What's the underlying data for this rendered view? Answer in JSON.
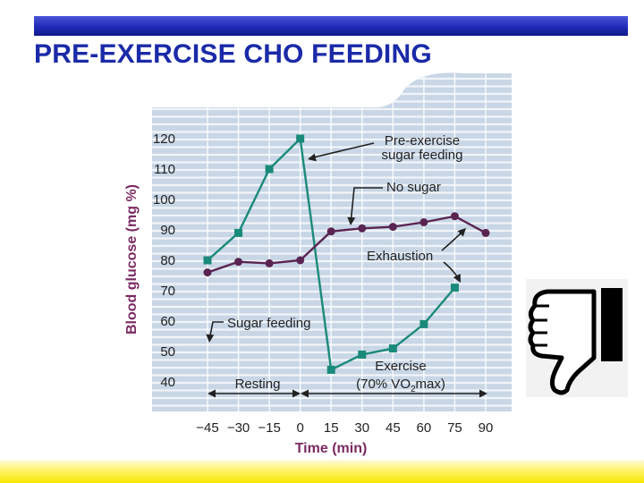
{
  "slide": {
    "title": "PRE-EXERCISE CHO FEEDING"
  },
  "chart_data": {
    "type": "line",
    "title": "",
    "xlabel": "Time (min)",
    "ylabel": "Blood glucose (mg %)",
    "x": [
      -45,
      -30,
      -15,
      0,
      15,
      30,
      45,
      60,
      75,
      90
    ],
    "x_tick_labels": [
      "−45",
      "−30",
      "−15",
      "0",
      "15",
      "30",
      "45",
      "60",
      "75",
      "90"
    ],
    "y_ticks": [
      40,
      50,
      60,
      70,
      80,
      90,
      100,
      110,
      120
    ],
    "xlim": [
      -45,
      90
    ],
    "ylim": [
      40,
      120
    ],
    "grid": true,
    "series": [
      {
        "key": "sugar",
        "color": "#1a8a7a",
        "marker": "square",
        "x": [
          -45,
          -30,
          -15,
          0,
          15,
          30,
          45,
          60,
          75
        ],
        "values": [
          80,
          89,
          110,
          120,
          44,
          49,
          51,
          59,
          71
        ]
      },
      {
        "key": "nosugar",
        "color": "#5a2452",
        "marker": "circle",
        "x": [
          -45,
          -30,
          -15,
          0,
          15,
          30,
          45,
          60,
          75,
          90
        ],
        "values": [
          76,
          79.5,
          79,
          80,
          89.5,
          90.5,
          91,
          92.5,
          94.5,
          89
        ]
      }
    ],
    "annotations": {
      "pre_exercise_line1": "Pre-exercise",
      "pre_exercise_line2": "sugar feeding",
      "no_sugar": "No sugar",
      "exhaustion": "Exhaustion",
      "sugar_feeding": "Sugar feeding",
      "resting": "Resting",
      "exercise_line1": "Exercise",
      "exercise_prefix": "(70% ",
      "exercise_v": "V",
      "exercise_o": "O",
      "exercise_sub": "2",
      "exercise_suffix": "max)"
    },
    "colors": {
      "background": "#c8d6e6",
      "grid": "#ffffff",
      "label": "#7a2a62",
      "text": "#222222"
    }
  },
  "decor": {
    "thumb_icon": "thumbs-down-icon"
  }
}
